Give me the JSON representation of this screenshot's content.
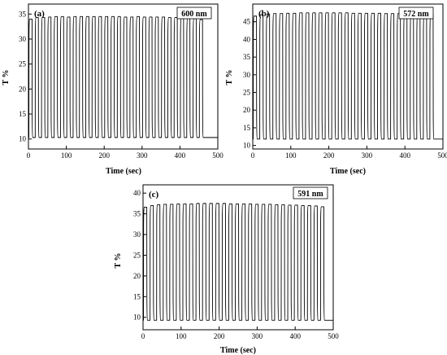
{
  "chart_data": [
    {
      "type": "line",
      "panel_label": "(a)",
      "legend_text": "600 nm",
      "legend_position": "top-right",
      "xlabel": "Time (sec)",
      "ylabel": "T %",
      "xlim": [
        0,
        500
      ],
      "ylim": [
        8,
        37
      ],
      "xticks": [
        0,
        100,
        200,
        300,
        400,
        500
      ],
      "yticks": [
        10,
        15,
        20,
        25,
        30,
        35
      ],
      "grid": false,
      "cycles": 28,
      "cycle_period_sec": 16.67,
      "series": [
        {
          "high_level": [
            34.0,
            34.3,
            34.3,
            34.4,
            34.5,
            34.5,
            34.4,
            34.5,
            34.5,
            34.5,
            34.5,
            34.5,
            34.5,
            34.5,
            34.5,
            34.4,
            34.4,
            34.5,
            34.4,
            34.4,
            34.4,
            34.4,
            34.3,
            34.3,
            34.3,
            34.2,
            34.1,
            33.9
          ],
          "low_level": 10.3
        }
      ]
    },
    {
      "type": "line",
      "panel_label": "(b)",
      "legend_text": "572 nm",
      "legend_position": "top-right",
      "xlabel": "Time (sec)",
      "ylabel": "T %",
      "xlim": [
        0,
        500
      ],
      "ylim": [
        9,
        50
      ],
      "xticks": [
        0,
        100,
        200,
        300,
        400,
        500
      ],
      "yticks": [
        10,
        15,
        20,
        25,
        30,
        35,
        40,
        45
      ],
      "grid": false,
      "cycles": 28,
      "cycle_period_sec": 17.2,
      "series": [
        {
          "high_level": [
            46.6,
            47.0,
            47.2,
            47.3,
            47.3,
            47.4,
            47.4,
            47.5,
            47.5,
            47.5,
            47.5,
            47.5,
            47.5,
            47.5,
            47.5,
            47.4,
            47.4,
            47.4,
            47.4,
            47.4,
            47.3,
            47.3,
            47.3,
            47.3,
            47.2,
            47.2,
            47.2,
            47.1
          ],
          "low_level": 11.8
        }
      ]
    },
    {
      "type": "line",
      "panel_label": "(c)",
      "legend_text": "591 nm",
      "legend_position": "top-right",
      "xlabel": "Time (sec)",
      "ylabel": "T %",
      "xlim": [
        0,
        500
      ],
      "ylim": [
        7,
        42
      ],
      "xticks": [
        0,
        100,
        200,
        300,
        400,
        500
      ],
      "yticks": [
        10,
        15,
        20,
        25,
        30,
        35,
        40
      ],
      "grid": false,
      "cycles": 28,
      "cycle_period_sec": 17.24,
      "series": [
        {
          "high_level": [
            36.6,
            37.0,
            37.2,
            37.3,
            37.3,
            37.4,
            37.4,
            37.4,
            37.5,
            37.5,
            37.5,
            37.5,
            37.5,
            37.4,
            37.4,
            37.4,
            37.4,
            37.3,
            37.3,
            37.3,
            37.2,
            37.2,
            37.1,
            37.1,
            37.0,
            37.0,
            36.9,
            36.7
          ],
          "low_level": 9.3
        }
      ]
    }
  ]
}
